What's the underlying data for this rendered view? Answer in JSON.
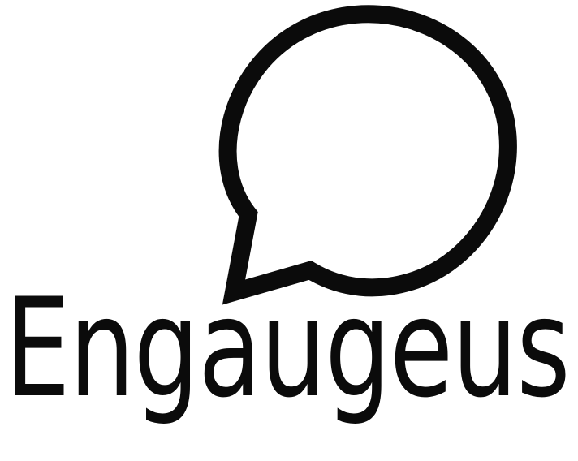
{
  "brand": {
    "name": "Engaugeus",
    "icon": "speech-bubble-icon",
    "color": "#0b0b0b",
    "background": "#ffffff"
  }
}
